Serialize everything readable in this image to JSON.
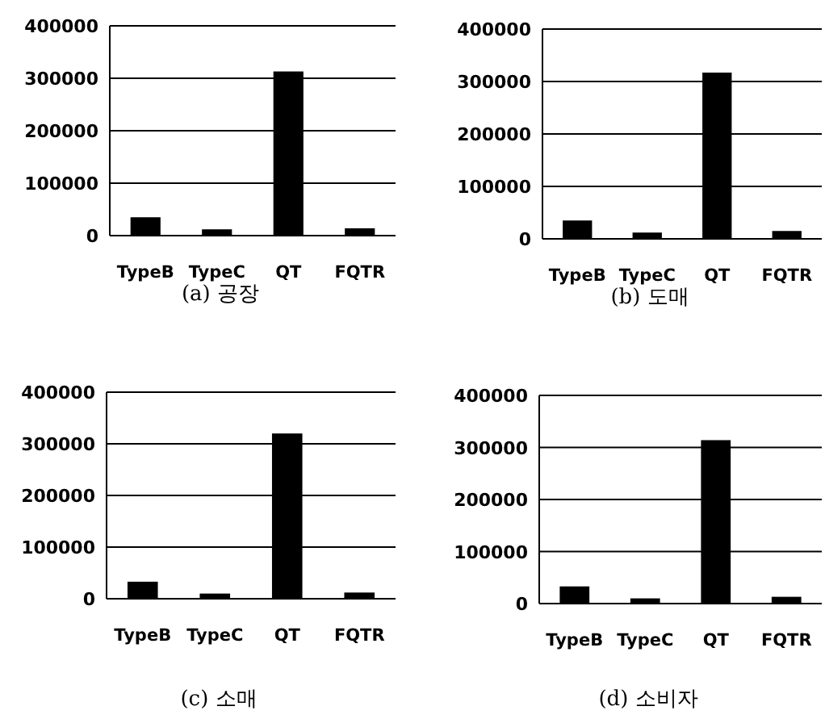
{
  "chart_data": [
    {
      "type": "bar",
      "title": "(a) 공장",
      "categories": [
        "TypeB",
        "TypeC",
        "QT",
        "FQTR"
      ],
      "values": [
        35000,
        12000,
        313000,
        14000
      ],
      "color": "#000000",
      "ylim": [
        0,
        400000
      ],
      "yticks": [
        0,
        100000,
        200000,
        300000,
        400000
      ],
      "grid": "y"
    },
    {
      "type": "bar",
      "title": "(b) 도매",
      "categories": [
        "TypeB",
        "TypeC",
        "QT",
        "FQTR"
      ],
      "values": [
        35000,
        12000,
        317000,
        15000
      ],
      "color": "#000000",
      "ylim": [
        0,
        400000
      ],
      "yticks": [
        0,
        100000,
        200000,
        300000,
        400000
      ],
      "grid": "y"
    },
    {
      "type": "bar",
      "title": "(c) 소매",
      "categories": [
        "TypeB",
        "TypeC",
        "QT",
        "FQTR"
      ],
      "values": [
        33000,
        10000,
        320000,
        12000
      ],
      "color": "#000000",
      "ylim": [
        0,
        400000
      ],
      "yticks": [
        0,
        100000,
        200000,
        300000,
        400000
      ],
      "grid": "y"
    },
    {
      "type": "bar",
      "title": "(d) 소비자",
      "categories": [
        "TypeB",
        "TypeC",
        "QT",
        "FQTR"
      ],
      "values": [
        33000,
        10000,
        314000,
        13000
      ],
      "color": "#000000",
      "ylim": [
        0,
        400000
      ],
      "yticks": [
        0,
        100000,
        200000,
        300000,
        400000
      ],
      "grid": "y"
    }
  ]
}
